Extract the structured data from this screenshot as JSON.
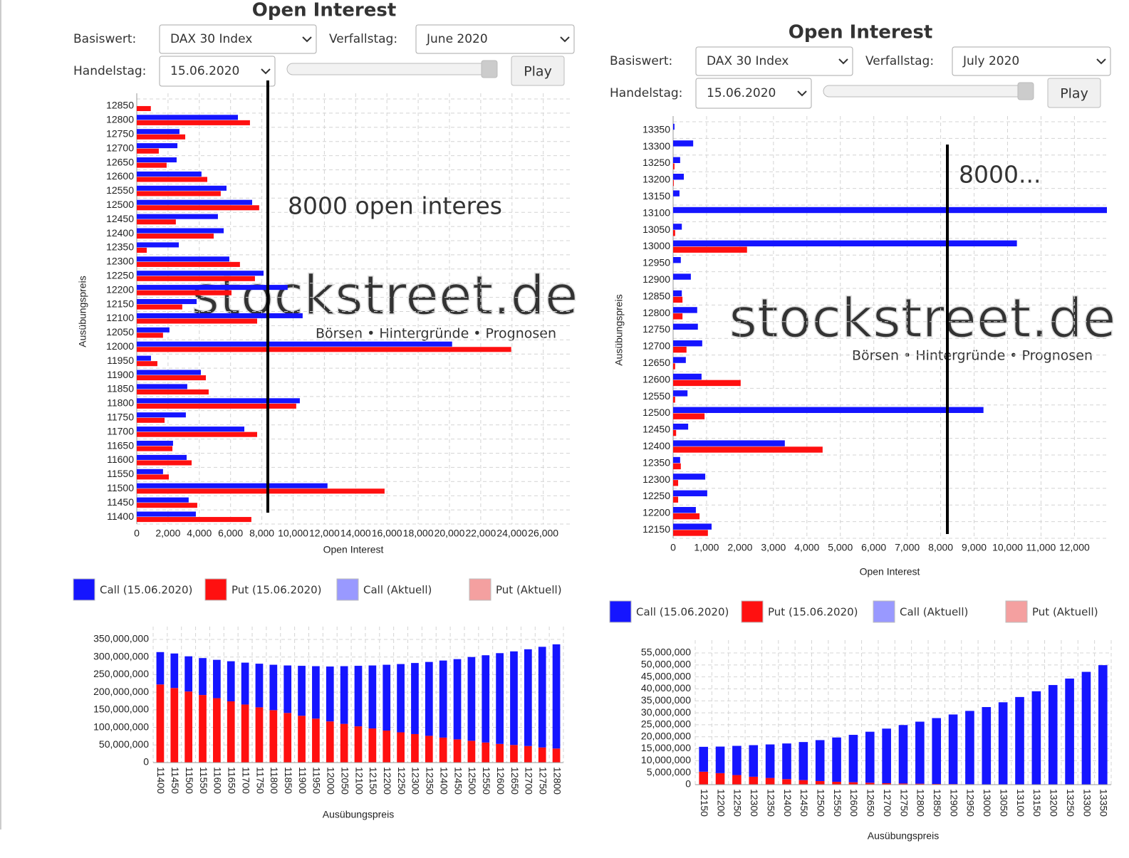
{
  "panels": [
    {
      "title": "Open Interest",
      "basiswert_label": "Basiswert:",
      "basiswert": "DAX 30 Index",
      "verfallstag_label": "Verfallstag:",
      "verfallstag": "June 2020",
      "handelstag_label": "Handelstag:",
      "handelstag": "15.06.2020",
      "play": "Play",
      "watermark": "stockstreet.de",
      "watermark_tagline": "Börsen • Hintergründe • Prognosen",
      "annotation": "8000 open interes"
    },
    {
      "title": "Open Interest",
      "basiswert_label": "Basiswert:",
      "basiswert": "DAX 30 Index",
      "verfallstag_label": "Verfallstag:",
      "verfallstag": "July 2020",
      "handelstag_label": "Handelstag:",
      "handelstag": "15.06.2020",
      "play": "Play",
      "watermark": "stockstreet.de",
      "watermark_tagline": "Börsen • Hintergründe • Prognosen",
      "annotation": "8000..."
    }
  ],
  "chart_data": [
    {
      "type": "barh",
      "xlabel": "Open Interest",
      "ylabel": "Ausübungspreis",
      "categories": [
        "11400",
        "11450",
        "11500",
        "11550",
        "11600",
        "11650",
        "11700",
        "11750",
        "11800",
        "11850",
        "11900",
        "11950",
        "12000",
        "12050",
        "12100",
        "12150",
        "12200",
        "12250",
        "12300",
        "12350",
        "12400",
        "12450",
        "12500",
        "12550",
        "12600",
        "12650",
        "12700",
        "12750",
        "12800",
        "12850"
      ],
      "series": [
        {
          "name": "Call (15.06.2020)",
          "color": "#1515ff",
          "values": [
            3780,
            3320,
            12200,
            1680,
            3190,
            2320,
            6880,
            3140,
            10430,
            3230,
            4100,
            910,
            20170,
            2090,
            10610,
            3830,
            9650,
            8110,
            5920,
            2690,
            5560,
            5190,
            7380,
            5740,
            4140,
            2550,
            2600,
            2730,
            6470,
            0
          ]
        },
        {
          "name": "Put (15.06.2020)",
          "color": "#ff1010",
          "values": [
            7330,
            3870,
            15850,
            2050,
            3510,
            2280,
            7700,
            1780,
            10200,
            4600,
            4420,
            1320,
            23950,
            1680,
            7700,
            2910,
            6060,
            7560,
            6600,
            640,
            4920,
            2500,
            7830,
            5370,
            4510,
            1910,
            1410,
            3100,
            7240,
            900
          ]
        },
        {
          "name": "Call (Aktuell)",
          "color": "#9999ff",
          "values": [
            null,
            null,
            null,
            null,
            null,
            null,
            null,
            null,
            null,
            null,
            null,
            null,
            null,
            null,
            null,
            null,
            null,
            null,
            null,
            null,
            null,
            null,
            null,
            null,
            null,
            null,
            null,
            null,
            null,
            null
          ]
        },
        {
          "name": "Put (Aktuell)",
          "color": "#f4a0a0",
          "values": [
            null,
            null,
            null,
            null,
            null,
            null,
            null,
            null,
            null,
            null,
            null,
            null,
            null,
            null,
            null,
            null,
            null,
            null,
            null,
            null,
            null,
            null,
            null,
            null,
            null,
            null,
            null,
            null,
            null,
            null
          ]
        }
      ],
      "xlim": [
        0,
        27700
      ],
      "xticks": [
        0,
        {
          "value": 2000,
          "label": "2,000"
        },
        {
          "value": 4000,
          "label": "4,000"
        },
        {
          "value": 6000,
          "label": "6,000"
        },
        {
          "value": 8000,
          "label": "8,000"
        },
        {
          "value": 10000,
          "label": "10,000"
        },
        {
          "value": 12000,
          "label": "12,000"
        },
        {
          "value": 14000,
          "label": "14,000"
        },
        {
          "value": 16000,
          "label": "16,000"
        },
        {
          "value": 18000,
          "label": "18,000"
        },
        {
          "value": 20000,
          "label": "20,000"
        },
        {
          "value": 22000,
          "label": "22,000"
        },
        {
          "value": 24000,
          "label": "24,000"
        },
        {
          "value": 26000,
          "label": "26,000"
        }
      ],
      "grid": true
    },
    {
      "type": "stacked_bar",
      "xlabel": "Ausübungspreis",
      "categories": [
        "11400",
        "11450",
        "11500",
        "11550",
        "11600",
        "11650",
        "11700",
        "11750",
        "11800",
        "11850",
        "11900",
        "11950",
        "12000",
        "12050",
        "12100",
        "12150",
        "12200",
        "12250",
        "12300",
        "12350",
        "12400",
        "12450",
        "12500",
        "12550",
        "12600",
        "12650",
        "12700",
        "12750",
        "12800"
      ],
      "series": [
        {
          "color": "#ff1010",
          "values": [
            222000000,
            212000000,
            202000000,
            192000000,
            183000000,
            174000000,
            165000000,
            157000000,
            149000000,
            141000000,
            133000000,
            125000000,
            117000000,
            110000000,
            103000000,
            97000000,
            91000000,
            86000000,
            81000000,
            76000000,
            71000000,
            66000000,
            62000000,
            57000000,
            53000000,
            50000000,
            47000000,
            43000000,
            40000000
          ]
        },
        {
          "color": "#1515ff",
          "values": [
            92000000,
            98000000,
            100000000,
            105000000,
            109000000,
            114000000,
            119000000,
            124000000,
            129000000,
            135000000,
            142000000,
            149000000,
            156000000,
            164000000,
            172000000,
            179000000,
            187000000,
            194000000,
            202000000,
            210000000,
            219000000,
            228000000,
            238000000,
            248000000,
            258000000,
            266000000,
            275000000,
            286000000,
            296000000
          ]
        }
      ],
      "ylim": [
        0,
        350000000
      ],
      "yticks": [
        0,
        {
          "value": 50000000,
          "label": "50,000,000"
        },
        {
          "value": 100000000,
          "label": "100,000,000"
        },
        {
          "value": 150000000,
          "label": "150,000,000"
        },
        {
          "value": 200000000,
          "label": "200,000,000"
        },
        {
          "value": 250000000,
          "label": "250,000,000"
        },
        {
          "value": 300000000,
          "label": "300,000,000"
        },
        {
          "value": 350000000,
          "label": "350,000,000"
        }
      ],
      "grid": true
    },
    {
      "type": "barh",
      "xlabel": "Open Interest",
      "ylabel": "Ausübungspreis",
      "categories": [
        "12150",
        "12200",
        "12250",
        "12300",
        "12350",
        "12400",
        "12450",
        "12500",
        "12550",
        "12600",
        "12650",
        "12700",
        "12750",
        "12800",
        "12850",
        "12900",
        "12950",
        "13000",
        "13050",
        "13100",
        "13150",
        "13200",
        "13250",
        "13300",
        "13350"
      ],
      "series": [
        {
          "name": "Call (15.06.2020)",
          "color": "#1515ff",
          "values": [
            1150,
            680,
            1020,
            960,
            210,
            3340,
            450,
            9280,
            430,
            850,
            380,
            870,
            740,
            720,
            260,
            530,
            230,
            10280,
            260,
            13000,
            190,
            320,
            210,
            600,
            40
          ]
        },
        {
          "name": "Put (15.06.2020)",
          "color": "#ff1010",
          "values": [
            1040,
            790,
            150,
            150,
            230,
            4470,
            90,
            940,
            60,
            2020,
            60,
            400,
            0,
            280,
            280,
            0,
            0,
            2210,
            60,
            0,
            0,
            20,
            40,
            0,
            0
          ]
        },
        {
          "name": "Call (Aktuell)",
          "color": "#9999ff",
          "values": [
            null,
            null,
            null,
            null,
            null,
            null,
            null,
            null,
            null,
            null,
            null,
            null,
            null,
            null,
            null,
            null,
            null,
            null,
            null,
            null,
            null,
            null,
            null,
            null,
            null
          ]
        },
        {
          "name": "Put (Aktuell)",
          "color": "#f4a0a0",
          "values": [
            null,
            null,
            null,
            null,
            null,
            null,
            null,
            null,
            null,
            null,
            null,
            null,
            null,
            null,
            null,
            null,
            null,
            null,
            null,
            null,
            null,
            null,
            null,
            null,
            null
          ]
        }
      ],
      "xlim": [
        0,
        12950
      ],
      "xticks": [
        0,
        {
          "value": 1000,
          "label": "1,000"
        },
        {
          "value": 2000,
          "label": "2,000"
        },
        {
          "value": 3000,
          "label": "3,000"
        },
        {
          "value": 4000,
          "label": "4,000"
        },
        {
          "value": 5000,
          "label": "5,000"
        },
        {
          "value": 6000,
          "label": "6,000"
        },
        {
          "value": 7000,
          "label": "7,000"
        },
        {
          "value": 8000,
          "label": "8,000"
        },
        {
          "value": 9000,
          "label": "9,000"
        },
        {
          "value": 10000,
          "label": "10,000"
        },
        {
          "value": 11000,
          "label": "11,000"
        },
        {
          "value": 12000,
          "label": "12,000"
        }
      ],
      "grid": true
    },
    {
      "type": "stacked_bar",
      "xlabel": "Ausübungspreis",
      "categories": [
        "12150",
        "12200",
        "12250",
        "12300",
        "12350",
        "12400",
        "12450",
        "12500",
        "12550",
        "12600",
        "12650",
        "12700",
        "12750",
        "12800",
        "12850",
        "12900",
        "12950",
        "13000",
        "13050",
        "13100",
        "13150",
        "13200",
        "13250",
        "13300",
        "13350"
      ],
      "series": [
        {
          "color": "#ff1010",
          "values": [
            5400000,
            4800000,
            4000000,
            3300000,
            2800000,
            2300000,
            1900000,
            1500000,
            1200000,
            1000000,
            800000,
            600000,
            500000,
            400000,
            300000,
            250000,
            200000,
            150000,
            100000,
            80000,
            60000,
            50000,
            40000,
            30000,
            20000
          ]
        },
        {
          "color": "#1515ff",
          "values": [
            10400000,
            11100000,
            12200000,
            13200000,
            14000000,
            14900000,
            15900000,
            17100000,
            18500000,
            19800000,
            21300000,
            22800000,
            24400000,
            25900000,
            27500000,
            29050000,
            30600000,
            32250000,
            34300000,
            36520000,
            38940000,
            41550000,
            44260000,
            47070000,
            49880000
          ]
        }
      ],
      "ylim": [
        0,
        55000000
      ],
      "yticks": [
        0,
        {
          "value": 5000000,
          "label": "5,000,000"
        },
        {
          "value": 10000000,
          "label": "10,000,000"
        },
        {
          "value": 15000000,
          "label": "15,000,000"
        },
        {
          "value": 20000000,
          "label": "20,000,000"
        },
        {
          "value": 25000000,
          "label": "25,000,000"
        },
        {
          "value": 30000000,
          "label": "30,000,000"
        },
        {
          "value": 35000000,
          "label": "35,000,000"
        },
        {
          "value": 40000000,
          "label": "40,000,000"
        },
        {
          "value": 45000000,
          "label": "45,000,000"
        },
        {
          "value": 50000000,
          "label": "50,000,000"
        },
        {
          "value": 55000000,
          "label": "55,000,000"
        }
      ],
      "grid": true
    }
  ]
}
